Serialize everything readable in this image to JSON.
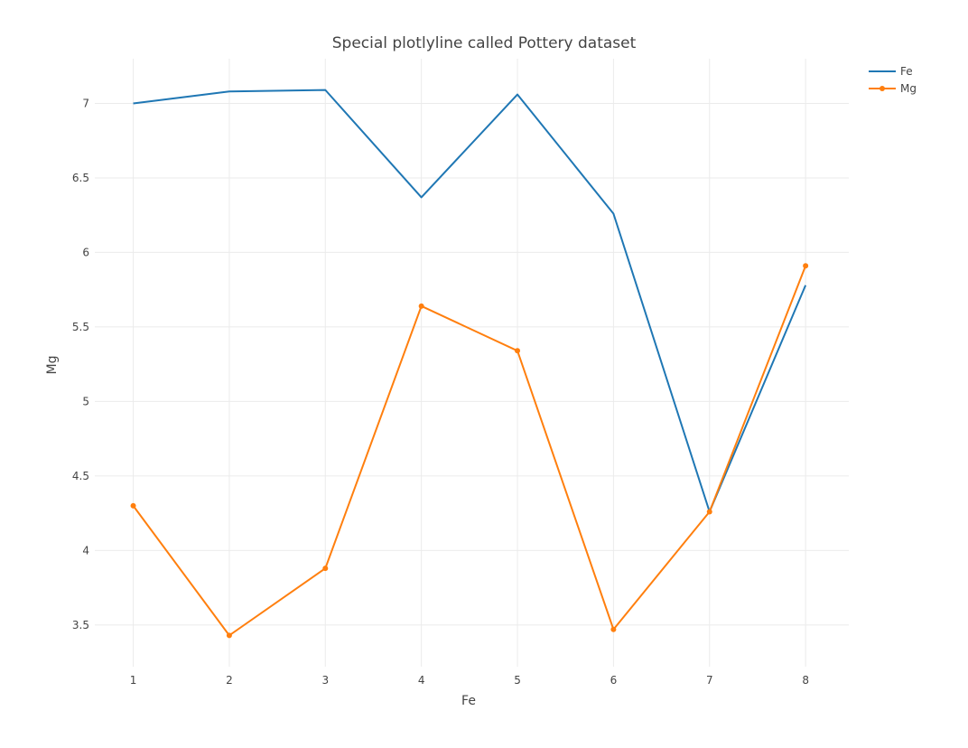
{
  "chart_data": {
    "type": "line",
    "title": "Special plotlyline called Pottery dataset",
    "xlabel": "Fe",
    "ylabel": "Mg",
    "xlim": [
      0.6,
      8.45
    ],
    "ylim": [
      3.22,
      7.3
    ],
    "x_ticks": [
      "1",
      "2",
      "3",
      "4",
      "5",
      "6",
      "7",
      "8"
    ],
    "y_ticks": [
      "3.5",
      "4",
      "4.5",
      "5",
      "5.5",
      "6",
      "6.5",
      "7"
    ],
    "grid": true,
    "legend_position": "top-right",
    "x": [
      1,
      2,
      3,
      4,
      5,
      6,
      7,
      8
    ],
    "series": [
      {
        "name": "Fe",
        "color": "#1f77b4",
        "mode": "lines",
        "values": [
          7.0,
          7.08,
          7.09,
          6.37,
          7.06,
          6.26,
          4.26,
          5.78
        ]
      },
      {
        "name": "Mg",
        "color": "#ff7f0e",
        "mode": "lines+markers",
        "values": [
          4.3,
          3.43,
          3.88,
          5.64,
          5.34,
          3.47,
          4.26,
          5.91
        ]
      }
    ]
  }
}
